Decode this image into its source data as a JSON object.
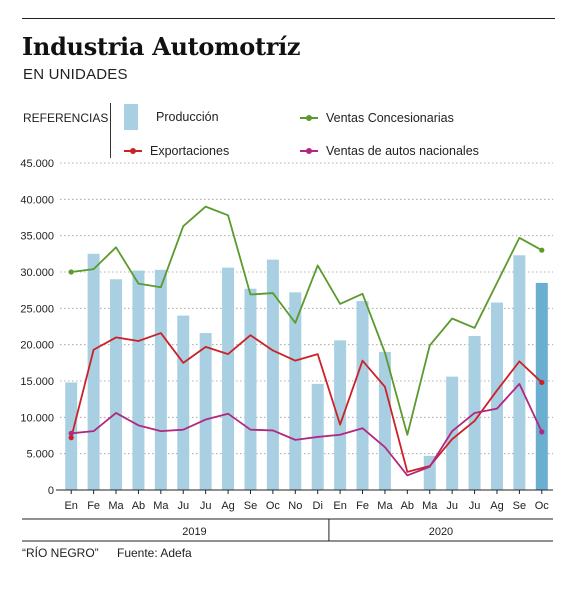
{
  "header": {
    "title": "Industria Automotríz",
    "subtitle": "EN UNIDADES"
  },
  "legend": {
    "label": "REFERENCIAS",
    "items": [
      {
        "label": "Producción",
        "color": "#a9d0e2",
        "kind": "bar"
      },
      {
        "label": "Ventas Concesionarias",
        "color": "#5b9a2d",
        "kind": "line"
      },
      {
        "label": "Exportaciones",
        "color": "#cc2127",
        "kind": "line"
      },
      {
        "label": "Ventas de autos nacionales",
        "color": "#b0287f",
        "kind": "line"
      }
    ]
  },
  "footer": {
    "source_brand": "“RÍO NEGRO”",
    "source_text": "Fuente: Adefa"
  },
  "chart_data": {
    "type": "bar",
    "categories": [
      "En",
      "Fe",
      "Ma",
      "Ab",
      "Ma",
      "Ju",
      "Ju",
      "Ag",
      "Se",
      "Oc",
      "No",
      "Di",
      "En",
      "Fe",
      "Ma",
      "Ab",
      "Ma",
      "Ju",
      "Ju",
      "Ag",
      "Se",
      "Oc"
    ],
    "groups": [
      {
        "label": "2019",
        "start": 0,
        "end": 11
      },
      {
        "label": "2020",
        "start": 12,
        "end": 21
      }
    ],
    "ylim": [
      0,
      45000
    ],
    "yticks": [
      "0",
      "5.000",
      "10.000",
      "15.000",
      "20.000",
      "25.000",
      "30.000",
      "35.000",
      "40.000",
      "45.000"
    ],
    "ytick_values": [
      0,
      5000,
      10000,
      15000,
      20000,
      25000,
      30000,
      35000,
      40000,
      45000
    ],
    "grid": true,
    "highlight_last_bar_color": "#6aaed0",
    "series": [
      {
        "name": "Producción",
        "type": "bar",
        "color": "#a9d0e2",
        "values": [
          14800,
          32500,
          29000,
          30200,
          30300,
          24000,
          21600,
          30600,
          27700,
          31700,
          27200,
          14600,
          20600,
          26000,
          19000,
          0,
          4700,
          15600,
          21200,
          25800,
          32300,
          28500
        ]
      },
      {
        "name": "Ventas Concesionarias",
        "type": "line",
        "color": "#5b9a2d",
        "values": [
          30000,
          30400,
          33400,
          28400,
          27900,
          36300,
          39000,
          37800,
          26900,
          27100,
          23000,
          30900,
          25600,
          27000,
          18900,
          7600,
          19900,
          23600,
          22300,
          28500,
          34700,
          33000
        ]
      },
      {
        "name": "Exportaciones",
        "type": "line",
        "color": "#cc2127",
        "values": [
          7200,
          19300,
          21000,
          20500,
          21600,
          17500,
          19700,
          18700,
          21300,
          19200,
          17800,
          18700,
          9000,
          17800,
          14200,
          2500,
          3300,
          7000,
          9500,
          13700,
          17700,
          14800
        ]
      },
      {
        "name": "Ventas de autos nacionales",
        "type": "line",
        "color": "#b0287f",
        "values": [
          7800,
          8100,
          10600,
          8900,
          8100,
          8300,
          9700,
          10500,
          8300,
          8200,
          6900,
          7300,
          7600,
          8500,
          5900,
          2000,
          3200,
          8100,
          10600,
          11200,
          14600,
          8000
        ]
      }
    ]
  }
}
